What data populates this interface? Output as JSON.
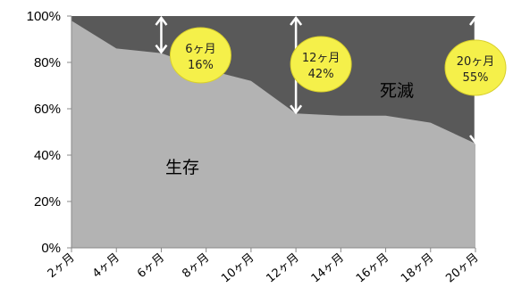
{
  "chart_data": {
    "type": "area",
    "x": [
      "2ヶ月",
      "4ヶ月",
      "6ヶ月",
      "8ヶ月",
      "10ヶ月",
      "12ヶ月",
      "14ヶ月",
      "16ヶ月",
      "18ヶ月",
      "20ヶ月"
    ],
    "series": [
      {
        "name": "生存",
        "values": [
          98,
          86,
          84,
          77,
          72,
          58,
          57,
          57,
          54,
          45
        ],
        "color": "#b3b3b3"
      },
      {
        "name": "死滅",
        "values": [
          2,
          14,
          16,
          23,
          28,
          42,
          43,
          43,
          46,
          55
        ],
        "color": "#595959"
      }
    ],
    "ylim": [
      0,
      100
    ],
    "yticks": [
      "0%",
      "20%",
      "40%",
      "60%",
      "80%",
      "100%"
    ],
    "grid": false,
    "annotations": [
      {
        "x": "6ヶ月",
        "line1": "6ヶ月",
        "line2": "16%"
      },
      {
        "x": "12ヶ月",
        "line1": "12ヶ月",
        "line2": "42%"
      },
      {
        "x": "20ヶ月",
        "line1": "20ヶ月",
        "line2": "55%"
      }
    ],
    "area_labels": {
      "survival": "生存",
      "death": "死滅"
    },
    "callout_color": "#f5f04a"
  }
}
